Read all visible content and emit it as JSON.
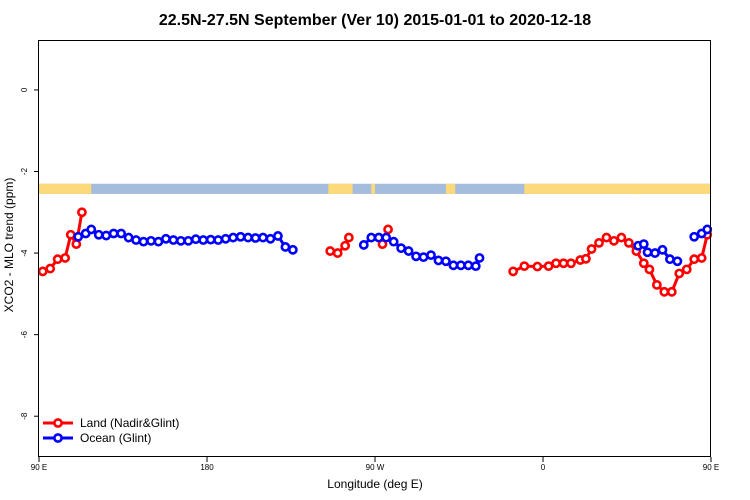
{
  "chart_data": {
    "type": "line",
    "title": "22.5N-27.5N September (Ver 10)   2015-01-01 to 2020-12-18",
    "xlabel": "Longitude (deg E)",
    "ylabel": "XCO2 - MLO trend (ppm)",
    "xlim": [
      90,
      450
    ],
    "ylim": [
      -9.0,
      1.2
    ],
    "x_ticks": [
      {
        "value": 90,
        "label": "90 E"
      },
      {
        "value": 180,
        "label": "180"
      },
      {
        "value": 270,
        "label": "90 W"
      },
      {
        "value": 360,
        "label": "0"
      },
      {
        "value": 450,
        "label": "90 E"
      },
      {
        "value": 540,
        "label": "180"
      }
    ],
    "y_ticks": [
      {
        "value": 0,
        "label": "0"
      },
      {
        "value": -2,
        "label": "-2"
      },
      {
        "value": -4,
        "label": "-4"
      },
      {
        "value": -6,
        "label": "-6"
      },
      {
        "value": -8,
        "label": "-8"
      }
    ],
    "legend_position": "bottom-left",
    "land_ocean_band": {
      "y_range": [
        -2.55,
        -2.3
      ],
      "ocean_color": "#a5bddd",
      "land_color": "#fcd97a",
      "land_segments": [
        [
          90,
          118
        ],
        [
          245,
          258
        ],
        [
          268,
          270
        ],
        [
          308,
          313
        ],
        [
          350,
          412
        ],
        [
          408,
          460
        ]
      ]
    },
    "series": [
      {
        "name": "Land (Nadir&Glint)",
        "color": "#ff0000",
        "segments": [
          [
            [
              92,
              -4.45
            ],
            [
              96,
              -4.38
            ],
            [
              100,
              -4.15
            ],
            [
              104,
              -4.12
            ],
            [
              107,
              -3.55
            ],
            [
              110,
              -3.78
            ],
            [
              113,
              -3.0
            ]
          ],
          [
            [
              246,
              -3.95
            ],
            [
              250,
              -4.0
            ],
            [
              254,
              -3.82
            ],
            [
              256,
              -3.62
            ]
          ],
          [
            [
              274,
              -3.78
            ],
            [
              277,
              -3.42
            ]
          ],
          [
            [
              344,
              -4.45
            ],
            [
              350,
              -4.32
            ],
            [
              357,
              -4.33
            ],
            [
              363,
              -4.32
            ],
            [
              367,
              -4.25
            ],
            [
              371,
              -4.25
            ],
            [
              375,
              -4.25
            ],
            [
              380,
              -4.17
            ],
            [
              383,
              -4.14
            ],
            [
              386,
              -3.9
            ],
            [
              390,
              -3.75
            ],
            [
              394,
              -3.62
            ],
            [
              398,
              -3.7
            ],
            [
              402,
              -3.62
            ],
            [
              406,
              -3.75
            ],
            [
              410,
              -3.95
            ],
            [
              414,
              -4.25
            ],
            [
              417,
              -4.4
            ],
            [
              421,
              -4.78
            ],
            [
              425,
              -4.95
            ],
            [
              429,
              -4.95
            ],
            [
              433,
              -4.5
            ],
            [
              437,
              -4.4
            ],
            [
              441,
              -4.15
            ],
            [
              445,
              -4.12
            ],
            [
              448,
              -3.55
            ],
            [
              451,
              -3.78
            ],
            [
              454,
              -3.0
            ]
          ]
        ]
      },
      {
        "name": "Ocean (Glint)",
        "color": "#0000ff",
        "segments": [
          [
            [
              111,
              -3.6
            ],
            [
              115,
              -3.52
            ],
            [
              118,
              -3.42
            ],
            [
              122,
              -3.55
            ],
            [
              126,
              -3.57
            ],
            [
              130,
              -3.52
            ],
            [
              134,
              -3.52
            ],
            [
              138,
              -3.62
            ],
            [
              142,
              -3.68
            ],
            [
              146,
              -3.72
            ],
            [
              150,
              -3.7
            ],
            [
              154,
              -3.72
            ],
            [
              158,
              -3.65
            ],
            [
              162,
              -3.68
            ],
            [
              166,
              -3.7
            ],
            [
              170,
              -3.7
            ],
            [
              174,
              -3.66
            ],
            [
              178,
              -3.68
            ],
            [
              182,
              -3.67
            ],
            [
              186,
              -3.68
            ],
            [
              190,
              -3.65
            ],
            [
              194,
              -3.62
            ],
            [
              198,
              -3.6
            ],
            [
              202,
              -3.62
            ],
            [
              206,
              -3.63
            ],
            [
              210,
              -3.62
            ],
            [
              214,
              -3.65
            ],
            [
              218,
              -3.58
            ],
            [
              222,
              -3.85
            ],
            [
              226,
              -3.92
            ]
          ],
          [
            [
              264,
              -3.8
            ],
            [
              268,
              -3.62
            ],
            [
              272,
              -3.62
            ],
            [
              276,
              -3.62
            ],
            [
              280,
              -3.72
            ],
            [
              284,
              -3.88
            ],
            [
              288,
              -3.95
            ],
            [
              292,
              -4.08
            ],
            [
              296,
              -4.1
            ],
            [
              300,
              -4.05
            ],
            [
              304,
              -4.18
            ],
            [
              308,
              -4.2
            ],
            [
              312,
              -4.3
            ],
            [
              316,
              -4.3
            ],
            [
              320,
              -4.3
            ],
            [
              324,
              -4.32
            ],
            [
              326,
              -4.12
            ]
          ],
          [
            [
              411,
              -3.82
            ],
            [
              414,
              -3.78
            ],
            [
              416,
              -3.98
            ],
            [
              420,
              -4.0
            ],
            [
              424,
              -3.92
            ],
            [
              428,
              -4.15
            ],
            [
              432,
              -4.2
            ]
          ],
          [
            [
              441,
              -3.6
            ],
            [
              445,
              -3.52
            ],
            [
              448,
              -3.42
            ],
            [
              452,
              -3.55
            ],
            [
              456,
              -3.57
            ],
            [
              460,
              -3.52
            ],
            [
              464,
              -3.52
            ],
            [
              468,
              -3.62
            ],
            [
              472,
              -3.68
            ],
            [
              476,
              -3.72
            ],
            [
              480,
              -3.7
            ],
            [
              484,
              -3.72
            ],
            [
              488,
              -3.66
            ],
            [
              492,
              -3.68
            ]
          ]
        ]
      }
    ]
  }
}
